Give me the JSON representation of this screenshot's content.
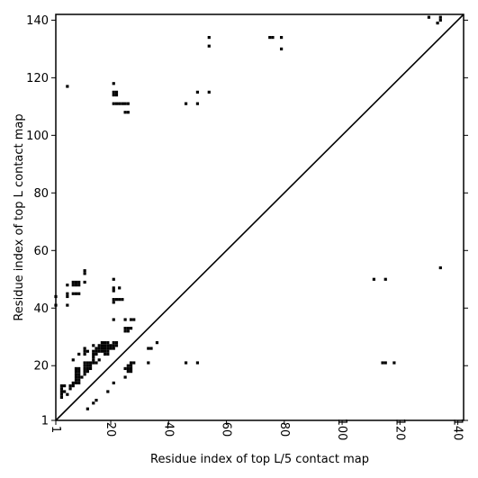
{
  "chart_data": {
    "type": "scatter",
    "title": "",
    "xlabel": "Residue index of top L/5 contact map",
    "ylabel": "Residue index of top L contact map",
    "xlim": [
      1,
      142
    ],
    "ylim": [
      1,
      142
    ],
    "xticks": [
      1,
      20,
      40,
      60,
      80,
      100,
      120,
      140
    ],
    "xtick_labels": [
      "1",
      "20",
      "40",
      "60",
      "80",
      "100",
      "120",
      "140"
    ],
    "yticks": [
      1,
      20,
      40,
      60,
      80,
      100,
      120,
      140
    ],
    "ytick_labels": [
      "1",
      "20",
      "40",
      "60",
      "80",
      "100",
      "120",
      "140"
    ],
    "diagonal": {
      "from": [
        1,
        1
      ],
      "to": [
        142,
        142
      ],
      "color": "#000000"
    },
    "marker_color": "#000000",
    "grid": false,
    "series": [
      {
        "points": [
          [
            5,
            117
          ],
          [
            21,
            118
          ],
          [
            21,
            115
          ],
          [
            22,
            115
          ],
          [
            21,
            114
          ],
          [
            22,
            114
          ],
          [
            21,
            111
          ],
          [
            22,
            111
          ],
          [
            23,
            111
          ],
          [
            24,
            111
          ],
          [
            25,
            111
          ],
          [
            26,
            111
          ],
          [
            25,
            108
          ],
          [
            26,
            108
          ],
          [
            46,
            111
          ],
          [
            50,
            115
          ],
          [
            50,
            111
          ],
          [
            54,
            115
          ],
          [
            54,
            134
          ],
          [
            54,
            131
          ],
          [
            75,
            134
          ],
          [
            76,
            134
          ],
          [
            79,
            134
          ],
          [
            79,
            130
          ],
          [
            130,
            141
          ],
          [
            133,
            139
          ],
          [
            134,
            141
          ],
          [
            134,
            140
          ],
          [
            1,
            44
          ],
          [
            5,
            45
          ],
          [
            5,
            44
          ],
          [
            5,
            48
          ],
          [
            1,
            41
          ],
          [
            5,
            41
          ],
          [
            7,
            49
          ],
          [
            8,
            49
          ],
          [
            9,
            49
          ],
          [
            7,
            48
          ],
          [
            8,
            48
          ],
          [
            9,
            48
          ],
          [
            7,
            45
          ],
          [
            8,
            45
          ],
          [
            9,
            45
          ],
          [
            11,
            53
          ],
          [
            11,
            52
          ],
          [
            11,
            49
          ],
          [
            21,
            50
          ],
          [
            21,
            47
          ],
          [
            21,
            46
          ],
          [
            23,
            47
          ],
          [
            21,
            43
          ],
          [
            22,
            43
          ],
          [
            23,
            43
          ],
          [
            24,
            43
          ],
          [
            21,
            42
          ],
          [
            21,
            36
          ],
          [
            25,
            36
          ],
          [
            27,
            36
          ],
          [
            28,
            36
          ],
          [
            25,
            33
          ],
          [
            26,
            33
          ],
          [
            27,
            33
          ],
          [
            25,
            32
          ],
          [
            26,
            32
          ],
          [
            111,
            50
          ],
          [
            115,
            50
          ],
          [
            134,
            54
          ],
          [
            36,
            28
          ],
          [
            33,
            26
          ],
          [
            34,
            26
          ],
          [
            33,
            21
          ],
          [
            46,
            21
          ],
          [
            50,
            21
          ],
          [
            114,
            21
          ],
          [
            115,
            21
          ],
          [
            118,
            21
          ],
          [
            7,
            22
          ],
          [
            9,
            24
          ],
          [
            11,
            26
          ],
          [
            11,
            25
          ],
          [
            12,
            25
          ],
          [
            11,
            24
          ],
          [
            14,
            27
          ],
          [
            14,
            25
          ],
          [
            15,
            25
          ],
          [
            16,
            25
          ],
          [
            17,
            25
          ],
          [
            18,
            25
          ],
          [
            19,
            25
          ],
          [
            15,
            26
          ],
          [
            16,
            26
          ],
          [
            17,
            26
          ],
          [
            18,
            26
          ],
          [
            19,
            26
          ],
          [
            20,
            26
          ],
          [
            21,
            26
          ],
          [
            16,
            27
          ],
          [
            17,
            27
          ],
          [
            18,
            27
          ],
          [
            19,
            27
          ],
          [
            20,
            27
          ],
          [
            21,
            27
          ],
          [
            22,
            27
          ],
          [
            17,
            28
          ],
          [
            18,
            28
          ],
          [
            19,
            28
          ],
          [
            21,
            28
          ],
          [
            22,
            28
          ],
          [
            14,
            24
          ],
          [
            15,
            24
          ],
          [
            18,
            24
          ],
          [
            19,
            24
          ],
          [
            14,
            23
          ],
          [
            14,
            22
          ],
          [
            13,
            21
          ],
          [
            14,
            21
          ],
          [
            15,
            21
          ],
          [
            16,
            22
          ],
          [
            11,
            21
          ],
          [
            12,
            21
          ],
          [
            13,
            20
          ],
          [
            11,
            20
          ],
          [
            12,
            20
          ],
          [
            11,
            19
          ],
          [
            12,
            19
          ],
          [
            13,
            19
          ],
          [
            8,
            19
          ],
          [
            9,
            19
          ],
          [
            11,
            18
          ],
          [
            12,
            18
          ],
          [
            8,
            18
          ],
          [
            9,
            18
          ],
          [
            11,
            17
          ],
          [
            8,
            17
          ],
          [
            9,
            17
          ],
          [
            8,
            16
          ],
          [
            9,
            16
          ],
          [
            10,
            16
          ],
          [
            8,
            15
          ],
          [
            9,
            15
          ],
          [
            8,
            14
          ],
          [
            9,
            14
          ],
          [
            7,
            14
          ],
          [
            6,
            13
          ],
          [
            7,
            13
          ],
          [
            6,
            12
          ],
          [
            3,
            13
          ],
          [
            4,
            13
          ],
          [
            3,
            12
          ],
          [
            3,
            11
          ],
          [
            4,
            11
          ],
          [
            3,
            10
          ],
          [
            3,
            9
          ],
          [
            5,
            10
          ],
          [
            12,
            5
          ],
          [
            14,
            7
          ],
          [
            15,
            8
          ],
          [
            19,
            11
          ],
          [
            21,
            14
          ],
          [
            25,
            19
          ],
          [
            26,
            19
          ],
          [
            27,
            19
          ],
          [
            26,
            18
          ],
          [
            27,
            18
          ],
          [
            26,
            20
          ],
          [
            27,
            20
          ],
          [
            27,
            21
          ],
          [
            28,
            21
          ],
          [
            25,
            16
          ]
        ]
      }
    ]
  }
}
